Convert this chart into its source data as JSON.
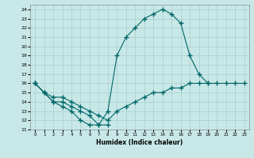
{
  "title": "",
  "xlabel": "Humidex (Indice chaleur)",
  "bg_color": "#c8e8e8",
  "grid_color": "#aacccc",
  "line_color": "#006666",
  "xlim": [
    -0.5,
    23.5
  ],
  "ylim": [
    11,
    24.5
  ],
  "xticks": [
    0,
    1,
    2,
    3,
    4,
    5,
    6,
    7,
    8,
    9,
    10,
    11,
    12,
    13,
    14,
    15,
    16,
    17,
    18,
    19,
    20,
    21,
    22,
    23
  ],
  "yticks": [
    11,
    12,
    13,
    14,
    15,
    16,
    17,
    18,
    19,
    20,
    21,
    22,
    23,
    24
  ],
  "line1_x": [
    0,
    1,
    2,
    3,
    4,
    5,
    6,
    7,
    8,
    9,
    10,
    11,
    12,
    13,
    14,
    15,
    16,
    17,
    18,
    19
  ],
  "line1_y": [
    16,
    15,
    14,
    13.5,
    13,
    12,
    11.5,
    11.5,
    13,
    19,
    21,
    22,
    23,
    23.5,
    24,
    23.5,
    22.5,
    19,
    17,
    16
  ],
  "line2_x": [
    0,
    1,
    2,
    3,
    4,
    5,
    6,
    7,
    8,
    9,
    10,
    11,
    12,
    13,
    14,
    15,
    16,
    17,
    18,
    19,
    20,
    21,
    22,
    23
  ],
  "line2_y": [
    16,
    15,
    14.5,
    14.5,
    14,
    13.5,
    13,
    12.5,
    12,
    13,
    13.5,
    14,
    14.5,
    15,
    15,
    15.5,
    15.5,
    16,
    16,
    16,
    16,
    16,
    16,
    16
  ],
  "line3_x": [
    0,
    1,
    2,
    3,
    4,
    5,
    6,
    7,
    8,
    9,
    10,
    11,
    12,
    13,
    14,
    15,
    16,
    17,
    18,
    19,
    20,
    21,
    22,
    23
  ],
  "line3_y": [
    16,
    15,
    14,
    14,
    13.5,
    13,
    12.5,
    11.5,
    11.5,
    null,
    null,
    null,
    null,
    null,
    null,
    null,
    null,
    null,
    null,
    null,
    null,
    null,
    null,
    null
  ]
}
